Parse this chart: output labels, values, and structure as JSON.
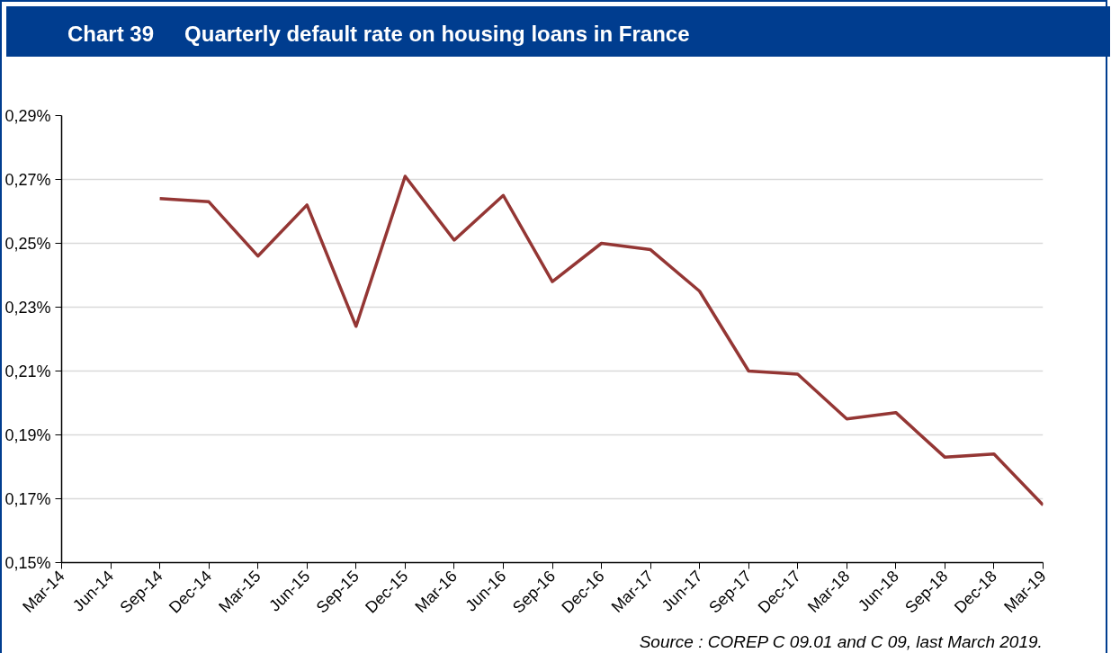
{
  "chart_data": {
    "type": "line",
    "title": "Chart 39",
    "subtitle": "Quarterly default rate on housing loans in France",
    "categories": [
      "Mar-14",
      "Jun-14",
      "Sep-14",
      "Dec-14",
      "Mar-15",
      "Jun-15",
      "Sep-15",
      "Dec-15",
      "Mar-16",
      "Jun-16",
      "Sep-16",
      "Dec-16",
      "Mar-17",
      "Jun-17",
      "Sep-17",
      "Dec-17",
      "Mar-18",
      "Jun-18",
      "Sep-18",
      "Dec-18",
      "Mar-19"
    ],
    "series": [
      {
        "color": "#943634",
        "values": [
          null,
          null,
          0.264,
          0.263,
          0.246,
          0.262,
          0.224,
          0.271,
          0.251,
          0.265,
          0.238,
          0.25,
          0.248,
          0.235,
          0.21,
          0.209,
          0.195,
          0.197,
          0.183,
          0.184,
          0.168
        ]
      }
    ],
    "ylim": [
      0.15,
      0.29
    ],
    "yticks": [
      {
        "value": 0.15,
        "label": "0,15%"
      },
      {
        "value": 0.17,
        "label": "0,17%"
      },
      {
        "value": 0.19,
        "label": "0,19%"
      },
      {
        "value": 0.21,
        "label": "0,21%"
      },
      {
        "value": 0.23,
        "label": "0,23%"
      },
      {
        "value": 0.25,
        "label": "0,25%"
      },
      {
        "value": 0.27,
        "label": "0,27%"
      },
      {
        "value": 0.29,
        "label": "0,29%"
      }
    ],
    "grid": "y",
    "marker": "none",
    "line_style": "solid",
    "annotations": [
      "Source : COREP C 09.01 and C 09, last March 2019."
    ]
  }
}
